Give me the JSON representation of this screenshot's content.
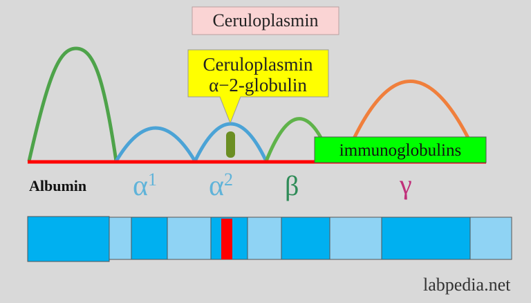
{
  "title": "Ceruloplasmin",
  "callout": {
    "line1": "Ceruloplasmin",
    "line2": "α−2-globulin"
  },
  "box_label": "immunoglobulins",
  "fractions": [
    {
      "label": "Albumin"
    },
    {
      "label": "α",
      "sup": "1"
    },
    {
      "label": "α",
      "sup": "2"
    },
    {
      "label": "β"
    },
    {
      "label": "γ"
    }
  ],
  "watermark": "labpedia.net"
}
